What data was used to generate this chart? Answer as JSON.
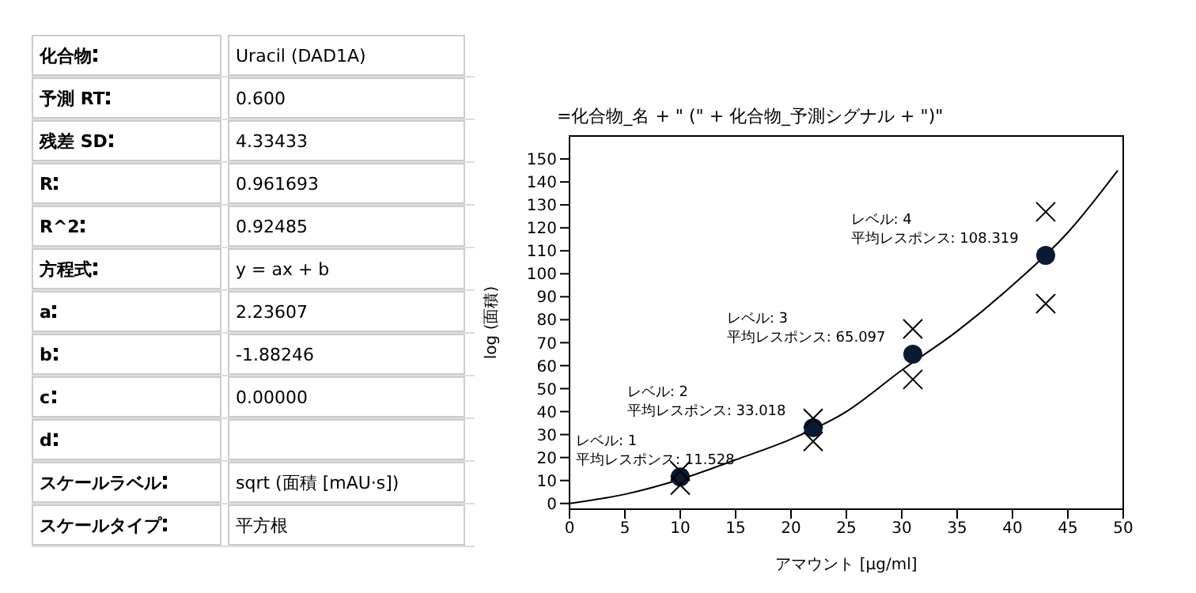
{
  "chart_data": [
    {
      "type": "other",
      "categories": [
        "化合物",
        "予測 RT",
        "残差 SD",
        "R",
        "R^2",
        "方程式",
        "a",
        "b",
        "c",
        "d",
        "スケールラベル",
        "スケールタイプ"
      ],
      "value_labels": [
        "Uracil (DAD1A)",
        "0.600",
        "4.33433",
        "0.961693",
        "0.92485",
        "y = ax + b",
        "2.23607",
        "-1.88246",
        "0.00000",
        null,
        "sqrt (面積 [mAU·s])",
        "平方根"
      ]
    },
    {
      "type": "scatter",
      "title": "=化合物_名 + \" (\" + 化合物_予測シグナル + \")\"",
      "xlabel": "アマウント [μg/ml]",
      "ylabel": "log (面積)",
      "series": [
        {
          "type": "line",
          "color": "#000000",
          "marker": "none",
          "x": [
            0,
            5,
            10,
            15,
            20,
            25,
            30,
            35,
            40,
            45,
            49.5
          ],
          "values": [
            0,
            4,
            10.5,
            19,
            28,
            40,
            58,
            75,
            95,
            118,
            145
          ]
        },
        {
          "type": "scatter",
          "color": "#0a1a33",
          "marker": "circle",
          "x": [
            10,
            22,
            31,
            43
          ],
          "values": [
            11.5,
            33,
            65,
            108
          ]
        },
        {
          "type": "scatter",
          "color": "#000000",
          "marker": "cross",
          "x": [
            10,
            10,
            22,
            22,
            31,
            31,
            43,
            43
          ],
          "values": [
            8,
            14,
            37,
            27,
            76,
            54,
            127,
            87
          ]
        }
      ],
      "annotations": [
        {
          "text": "レベル: 1\n平均レスポンス: 11.528",
          "x": 10,
          "y": 11.5
        },
        {
          "text": "レベル: 2\n平均レスポンス: 33.018",
          "x": 22,
          "y": 33
        },
        {
          "text": "レベル: 3\n平均レスポンス: 65.097",
          "x": 31,
          "y": 65
        },
        {
          "text": "レベル: 4\n平均レスポンス: 108.319",
          "x": 43,
          "y": 108
        }
      ],
      "xlim": [
        0,
        50
      ],
      "xticks": [
        0,
        5,
        10,
        15,
        20,
        25,
        30,
        35,
        40,
        45,
        50
      ],
      "ylim": [
        -2.5,
        160
      ],
      "yticks": [
        0,
        10,
        20,
        30,
        40,
        50,
        60,
        70,
        80,
        90,
        100,
        110,
        120,
        130,
        140,
        150
      ],
      "grid": false,
      "legend": false
    }
  ]
}
